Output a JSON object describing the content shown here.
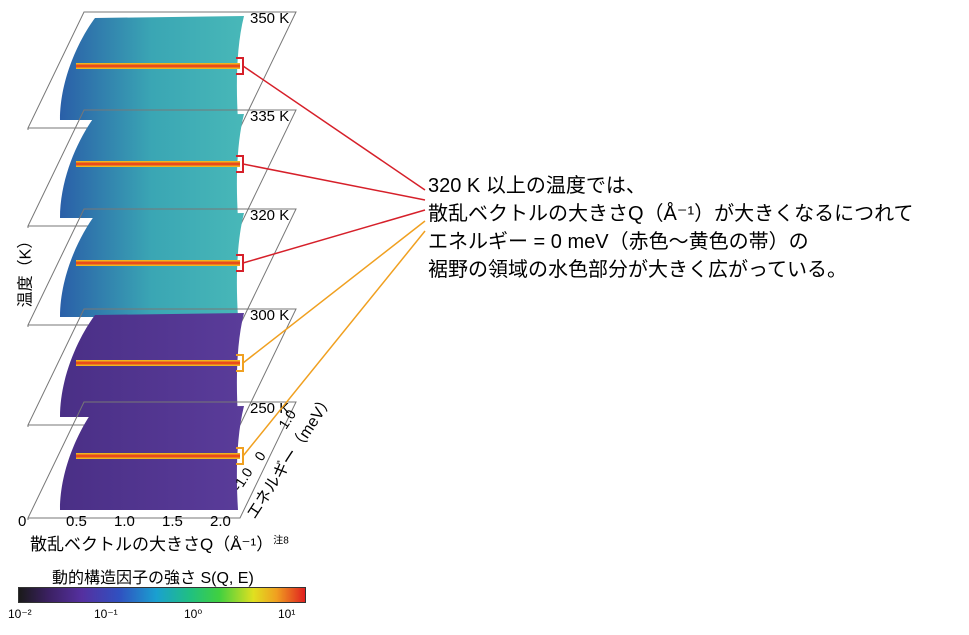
{
  "panels": [
    {
      "temperature": "350 K",
      "bracket_color": "#d6202a"
    },
    {
      "temperature": "335 K",
      "bracket_color": "#d6202a"
    },
    {
      "temperature": "320 K",
      "bracket_color": "#d6202a"
    },
    {
      "temperature": "300 K",
      "bracket_color": "#f0a020"
    },
    {
      "temperature": "250 K",
      "bracket_color": "#f0a020"
    }
  ],
  "y_axis_label": "温度（K）",
  "x_axis": {
    "title": "散乱ベクトルの大きさQ（Å⁻¹）",
    "note": "注8",
    "ticks": [
      "0",
      "0.5",
      "1.0",
      "1.5",
      "2.0"
    ]
  },
  "energy_axis": {
    "title": "エネルギー（meV）",
    "ticks": [
      "-1.0",
      "0",
      "1.0"
    ]
  },
  "colorbar": {
    "title": "動的構造因子の強さ S(Q, E)",
    "ticks": [
      "10⁻²",
      "10⁻¹",
      "10⁰",
      "10¹"
    ]
  },
  "annotation": {
    "lines": [
      "320 K 以上の温度では、",
      "散乱ベクトルの大きさQ（Å⁻¹）が大きくなるにつれて",
      "エネルギー = 0 meV（赤色〜黄色の帯）の",
      "裾野の領域の水色部分が大きく広がっている。"
    ]
  },
  "colors": {
    "high_temp_lines": "#d6202a",
    "low_temp_lines": "#f0a020",
    "high_temp_fill": "#3aa6b4",
    "low_temp_fill": "#5a3c9a",
    "elastic_band": "#e8702a"
  }
}
